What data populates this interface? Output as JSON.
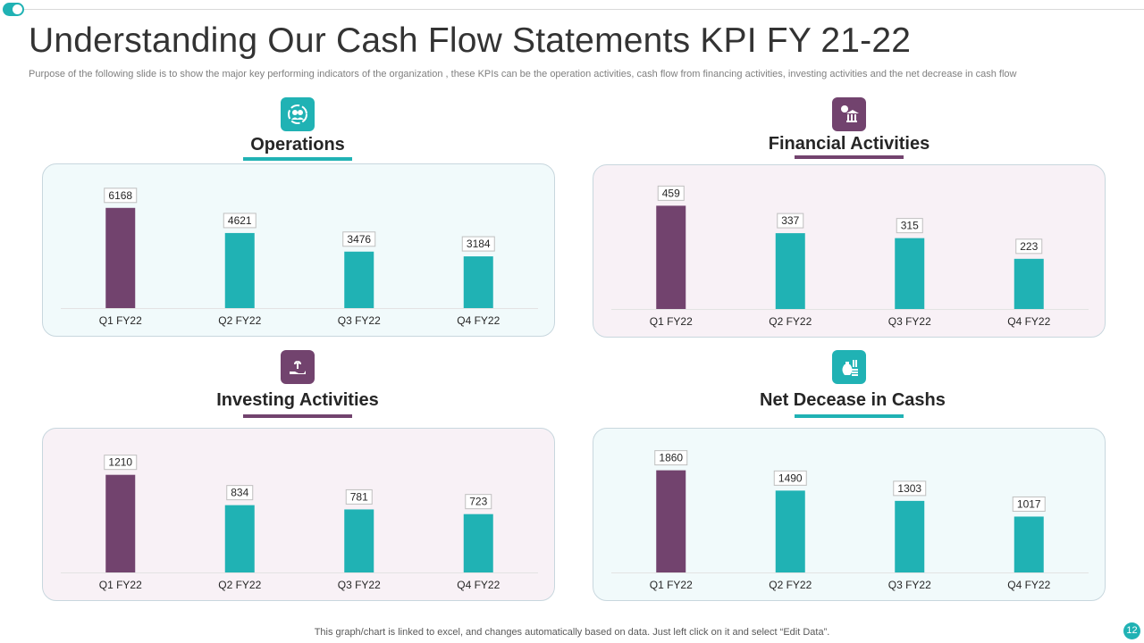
{
  "header": {
    "title": "Understanding Our Cash Flow Statements KPI FY 21-22",
    "subtitle": "Purpose of the following slide is to show the major key performing indicators of the organization , these KPIs can be the operation activities, cash flow from financing activities, investing activities and the net decrease in cash flow"
  },
  "footer": {
    "note": "This graph/chart is linked to excel,  and changes automatically based on data. Just left click on it and select “Edit Data”.",
    "page_number": "12"
  },
  "colors": {
    "teal": "#20b2b4",
    "purple": "#72436e"
  },
  "icons": {
    "operations": "team-gears-icon",
    "financial": "money-bag-bank-icon",
    "investing": "hand-plant-dollar-icon",
    "net_decrease": "money-bag-coins-icon"
  },
  "chart_data": [
    {
      "type": "bar",
      "title": "Operations",
      "categories": [
        "Q1 FY22",
        "Q2 FY22",
        "Q3 FY22",
        "Q4 FY22"
      ],
      "values": [
        6168,
        4621,
        3476,
        3184
      ],
      "labels": [
        "6168",
        "4621",
        "3476",
        "3184"
      ],
      "bar_colors": [
        "#72436e",
        "#20b2b4",
        "#20b2b4",
        "#20b2b4"
      ],
      "ylim": [
        0,
        7200
      ],
      "grid": false,
      "legend": "none"
    },
    {
      "type": "bar",
      "title": "Financial Activities",
      "categories": [
        "Q1 FY22",
        "Q2 FY22",
        "Q3 FY22",
        "Q4 FY22"
      ],
      "values": [
        459,
        337,
        315,
        223
      ],
      "labels": [
        "459",
        "337",
        "315",
        "223"
      ],
      "bar_colors": [
        "#72436e",
        "#20b2b4",
        "#20b2b4",
        "#20b2b4"
      ],
      "ylim": [
        0,
        520
      ],
      "grid": false,
      "legend": "none"
    },
    {
      "type": "bar",
      "title": "Investing Activities",
      "categories": [
        "Q1 FY22",
        "Q2 FY22",
        "Q3 FY22",
        "Q4 FY22"
      ],
      "values": [
        1210,
        834,
        781,
        723
      ],
      "labels": [
        "1210",
        "834",
        "781",
        "723"
      ],
      "bar_colors": [
        "#72436e",
        "#20b2b4",
        "#20b2b4",
        "#20b2b4"
      ],
      "ylim": [
        0,
        1450
      ],
      "grid": false,
      "legend": "none"
    },
    {
      "type": "bar",
      "title": "Net Decease in Cashs",
      "categories": [
        "Q1 FY22",
        "Q2 FY22",
        "Q3 FY22",
        "Q4 FY22"
      ],
      "values": [
        1860,
        1490,
        1303,
        1017
      ],
      "labels": [
        "1860",
        "1490",
        "1303",
        "1017"
      ],
      "bar_colors": [
        "#72436e",
        "#20b2b4",
        "#20b2b4",
        "#20b2b4"
      ],
      "ylim": [
        0,
        2130
      ],
      "grid": false,
      "legend": "none"
    }
  ]
}
